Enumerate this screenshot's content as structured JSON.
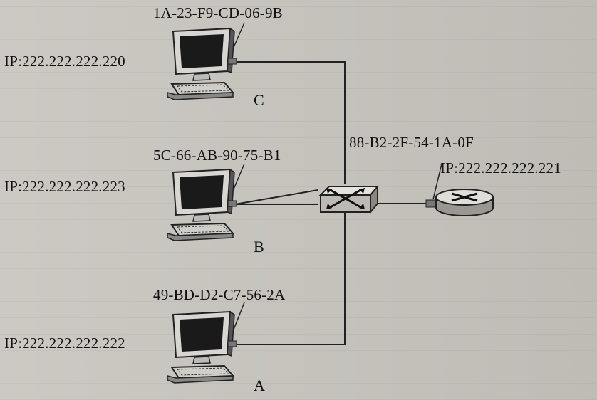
{
  "hosts": {
    "c": {
      "letter": "C",
      "ip": "IP:222.222.222.220",
      "mac": "1A-23-F9-CD-06-9B"
    },
    "b": {
      "letter": "B",
      "ip": "IP:222.222.222.223",
      "mac": "5C-66-AB-90-75-B1"
    },
    "a": {
      "letter": "A",
      "ip": "IP:222.222.222.222",
      "mac": "49-BD-D2-C7-56-2A"
    }
  },
  "router": {
    "ip": "IP:222.222.222.221",
    "mac": "88-B2-2F-54-1A-0F"
  },
  "icons": {
    "host": "desktop-computer-icon",
    "switch": "switch-icon",
    "router": "router-icon"
  }
}
